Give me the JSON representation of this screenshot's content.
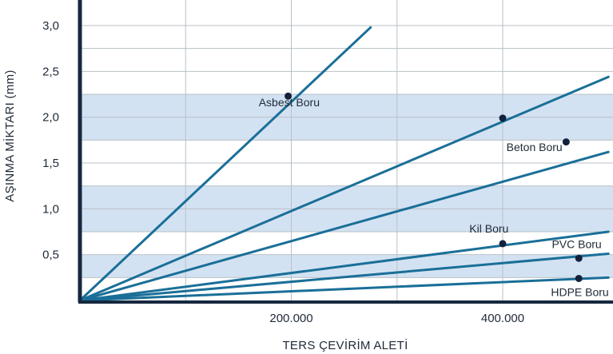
{
  "chart_data": {
    "type": "line",
    "xlabel": "TERS ÇEVİRİM ALETİ",
    "ylabel": "AŞINMA MİKTARI (mm)",
    "xlim": [
      0,
      500000
    ],
    "ylim": [
      0,
      3.0
    ],
    "x_ticks": [
      {
        "value": 200000,
        "label": "200.000"
      },
      {
        "value": 400000,
        "label": "400.000"
      }
    ],
    "x_gridlines": [
      100000,
      200000,
      300000,
      400000
    ],
    "y_ticks": [
      {
        "value": 3.0,
        "label": "3,0"
      },
      {
        "value": 2.5,
        "label": "2,5"
      },
      {
        "value": 2.0,
        "label": "2,0"
      },
      {
        "value": 1.5,
        "label": "1,5"
      },
      {
        "value": 1.0,
        "label": "1,0"
      },
      {
        "value": 0.5,
        "label": "0,5"
      }
    ],
    "y_gridlines": [
      0.25,
      0.5,
      0.75,
      1.0,
      1.25,
      1.5,
      1.75,
      2.0,
      2.25,
      2.5,
      2.75,
      3.0
    ],
    "bands": [
      [
        0.25,
        0.5
      ],
      [
        0.75,
        1.25
      ],
      [
        1.75,
        2.25
      ]
    ],
    "grid": true,
    "legend": "none",
    "colors": {
      "line": "#1a6f98",
      "marker": "#14213d",
      "band": "#d3e2f2",
      "grid": "#b9c0c8",
      "axis": "#16283f"
    },
    "series": [
      {
        "label": "Asbest Boru",
        "x": [
          0,
          275000
        ],
        "y": [
          0,
          2.98
        ],
        "marker": {
          "x": 197000,
          "y": 2.23
        },
        "label_at": {
          "x": 198000,
          "y": 2.12
        }
      },
      {
        "label": "Beton Boru",
        "x": [
          0,
          500000
        ],
        "y": [
          0,
          2.44
        ],
        "marker": {
          "x": 400000,
          "y": 1.99
        },
        "label_at": {
          "x": 430000,
          "y": 1.63
        }
      },
      {
        "label": "",
        "x": [
          0,
          500000
        ],
        "y": [
          0,
          1.62
        ],
        "marker": {
          "x": 460000,
          "y": 1.73
        },
        "label_at": null
      },
      {
        "label": "Kil Boru",
        "x": [
          0,
          500000
        ],
        "y": [
          0,
          0.75
        ],
        "marker": {
          "x": 400000,
          "y": 0.62
        },
        "label_at": {
          "x": 387000,
          "y": 0.74
        }
      },
      {
        "label": "PVC Boru",
        "x": [
          0,
          500000
        ],
        "y": [
          0,
          0.51
        ],
        "marker": {
          "x": 472000,
          "y": 0.46
        },
        "label_at": {
          "x": 470000,
          "y": 0.57
        }
      },
      {
        "label": "HDPE Boru",
        "x": [
          0,
          500000
        ],
        "y": [
          0,
          0.25
        ],
        "marker": {
          "x": 472000,
          "y": 0.24
        },
        "label_at": {
          "x": 473000,
          "y": 0.05
        }
      }
    ]
  }
}
